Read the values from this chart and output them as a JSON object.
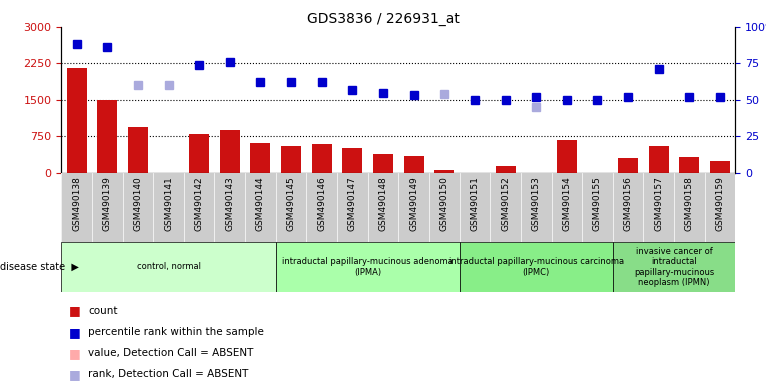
{
  "title": "GDS3836 / 226931_at",
  "samples": [
    "GSM490138",
    "GSM490139",
    "GSM490140",
    "GSM490141",
    "GSM490142",
    "GSM490143",
    "GSM490144",
    "GSM490145",
    "GSM490146",
    "GSM490147",
    "GSM490148",
    "GSM490149",
    "GSM490150",
    "GSM490151",
    "GSM490152",
    "GSM490153",
    "GSM490154",
    "GSM490155",
    "GSM490156",
    "GSM490157",
    "GSM490158",
    "GSM490159"
  ],
  "count_values": [
    2150,
    1500,
    950,
    null,
    800,
    870,
    620,
    550,
    600,
    520,
    390,
    350,
    60,
    null,
    130,
    null,
    680,
    null,
    300,
    560,
    330,
    250
  ],
  "count_absent": [
    false,
    false,
    false,
    true,
    false,
    false,
    false,
    false,
    false,
    false,
    false,
    false,
    false,
    true,
    false,
    true,
    false,
    true,
    false,
    false,
    false,
    false
  ],
  "rank_present_pct": [
    88,
    86,
    null,
    null,
    74,
    76,
    62,
    62,
    62,
    57,
    55,
    53,
    null,
    50,
    50,
    52,
    50,
    50,
    52,
    71,
    52,
    52
  ],
  "rank_absent_pct": [
    null,
    null,
    60,
    60,
    null,
    null,
    null,
    null,
    null,
    null,
    null,
    null,
    54,
    null,
    null,
    45,
    null,
    null,
    null,
    null,
    null,
    null
  ],
  "disease_groups": [
    {
      "label": "control, normal",
      "start": 0,
      "end": 7,
      "color": "#ccffcc"
    },
    {
      "label": "intraductal papillary-mucinous adenoma\n(IPMA)",
      "start": 7,
      "end": 13,
      "color": "#aaffaa"
    },
    {
      "label": "intraductal papillary-mucinous carcinoma\n(IPMC)",
      "start": 13,
      "end": 18,
      "color": "#88ee88"
    },
    {
      "label": "invasive cancer of\nintraductal\npapillary-mucinous\nneoplasm (IPMN)",
      "start": 18,
      "end": 22,
      "color": "#88dd88"
    }
  ],
  "ylim_left": [
    0,
    3000
  ],
  "ylim_right": [
    0,
    100
  ],
  "yticks_left": [
    0,
    750,
    1500,
    2250,
    3000
  ],
  "yticks_right": [
    0,
    25,
    50,
    75,
    100
  ],
  "bar_color_present": "#cc1111",
  "bar_color_absent": "#ffaaaa",
  "rank_color_present": "#0000cc",
  "rank_color_absent": "#aaaadd",
  "grid_lines": [
    750,
    1500,
    2250
  ],
  "bg_color": "#cccccc"
}
